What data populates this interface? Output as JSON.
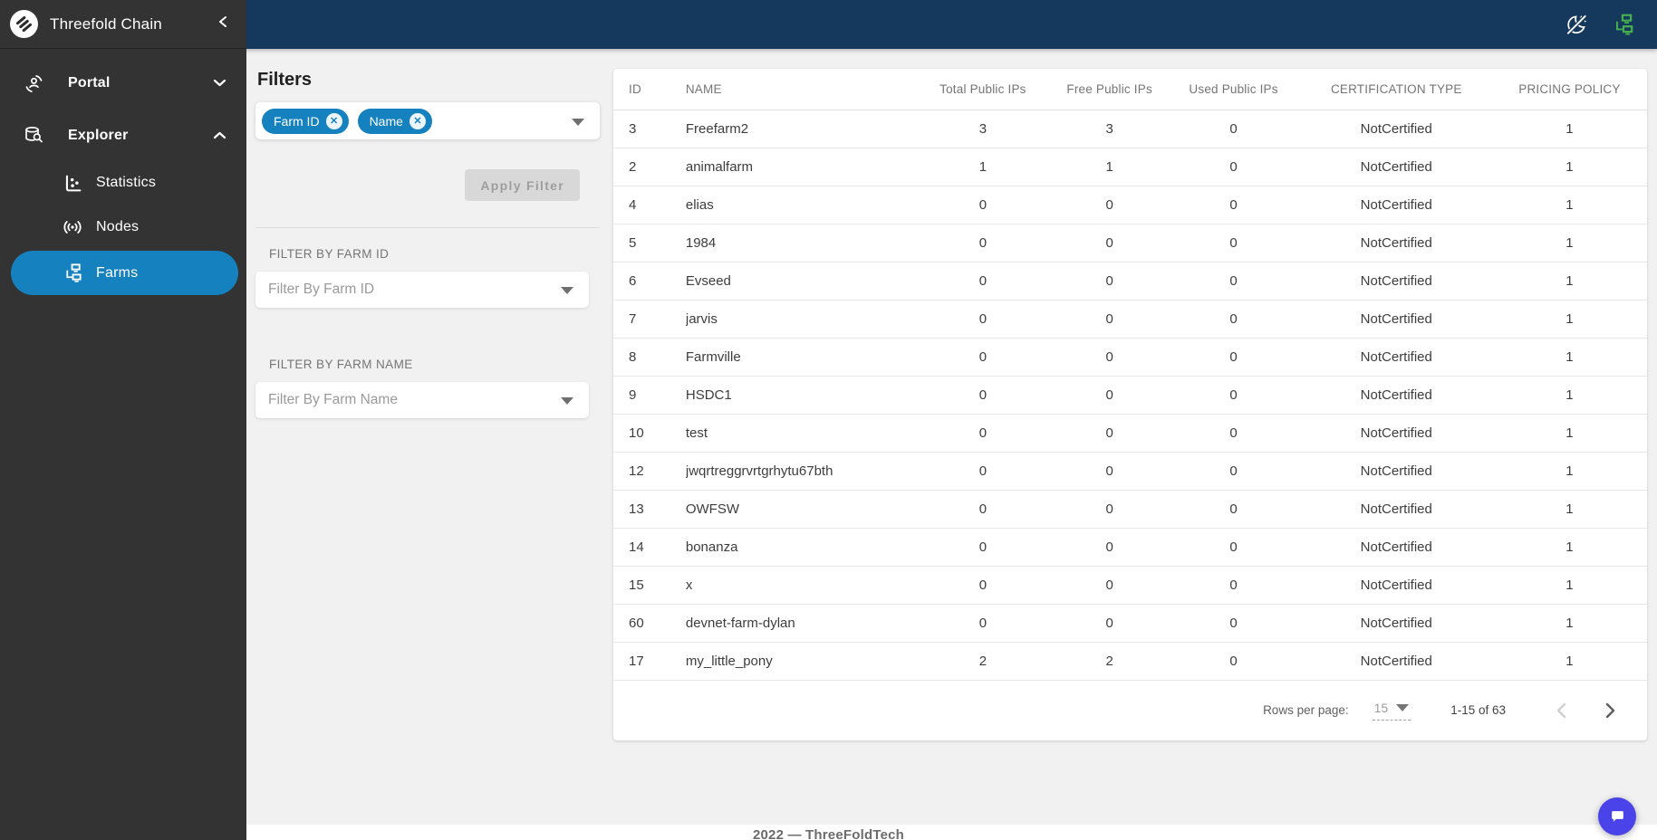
{
  "app": {
    "title": "Threefold Chain"
  },
  "header": {
    "icons": [
      {
        "name": "theme-toggle-moon-slash-icon",
        "color": "#ffffff"
      },
      {
        "name": "network-lan-icon",
        "color": "#46b14c"
      }
    ]
  },
  "sidebar": {
    "title": "Threefold Chain",
    "items": [
      {
        "label": "Portal",
        "state": "collapsed"
      },
      {
        "label": "Explorer",
        "state": "expanded"
      },
      {
        "label": "Statistics"
      },
      {
        "label": "Nodes"
      },
      {
        "label": "Farms",
        "selected": true
      }
    ]
  },
  "filters": {
    "title": "Filters",
    "chips": [
      "Farm ID",
      "Name"
    ],
    "apply_label": "Apply Filter",
    "farm_id": {
      "label": "FILTER BY FARM ID",
      "placeholder": "Filter By Farm ID"
    },
    "farm_name": {
      "label": "FILTER BY FARM NAME",
      "placeholder": "Filter By Farm Name"
    }
  },
  "table": {
    "columns": [
      "ID",
      "NAME",
      "Total Public IPs",
      "Free Public IPs",
      "Used Public IPs",
      "CERTIFICATION TYPE",
      "PRICING POLICY"
    ],
    "col_keys": [
      "id",
      "name",
      "total-public-ips",
      "free-public-ips",
      "used-public-ips",
      "certification-type",
      "pricing-policy"
    ],
    "col_widths": [
      "7%",
      "22%",
      "13.5%",
      "11%",
      "13%",
      "18.5%",
      "15%"
    ],
    "rows": [
      [
        "3",
        "Freefarm2",
        "3",
        "3",
        "0",
        "NotCertified",
        "1"
      ],
      [
        "2",
        "animalfarm",
        "1",
        "1",
        "0",
        "NotCertified",
        "1"
      ],
      [
        "4",
        "elias",
        "0",
        "0",
        "0",
        "NotCertified",
        "1"
      ],
      [
        "5",
        "1984",
        "0",
        "0",
        "0",
        "NotCertified",
        "1"
      ],
      [
        "6",
        "Evseed",
        "0",
        "0",
        "0",
        "NotCertified",
        "1"
      ],
      [
        "7",
        "jarvis",
        "0",
        "0",
        "0",
        "NotCertified",
        "1"
      ],
      [
        "8",
        "Farmville",
        "0",
        "0",
        "0",
        "NotCertified",
        "1"
      ],
      [
        "9",
        "HSDC1",
        "0",
        "0",
        "0",
        "NotCertified",
        "1"
      ],
      [
        "10",
        "test",
        "0",
        "0",
        "0",
        "NotCertified",
        "1"
      ],
      [
        "12",
        "jwqrtreggrvrtgrhytu67bth",
        "0",
        "0",
        "0",
        "NotCertified",
        "1"
      ],
      [
        "13",
        "OWFSW",
        "0",
        "0",
        "0",
        "NotCertified",
        "1"
      ],
      [
        "14",
        "bonanza",
        "0",
        "0",
        "0",
        "NotCertified",
        "1"
      ],
      [
        "15",
        "x",
        "0",
        "0",
        "0",
        "NotCertified",
        "1"
      ],
      [
        "60",
        "devnet-farm-dylan",
        "0",
        "0",
        "0",
        "NotCertified",
        "1"
      ],
      [
        "17",
        "my_little_pony",
        "2",
        "2",
        "0",
        "NotCertified",
        "1"
      ]
    ]
  },
  "pagination": {
    "rows_per_page_label": "Rows per page:",
    "rows_per_page": "15",
    "range": "1-15 of 63"
  },
  "footer": {
    "text": "2022 — ThreeFoldTech"
  },
  "colors": {
    "accent": "#1581be",
    "header_bar": "#14395c",
    "sidebar": "#333333",
    "green": "#46b14c",
    "chat_bubble": "#4a43e9",
    "background": "#f1f1f1"
  }
}
